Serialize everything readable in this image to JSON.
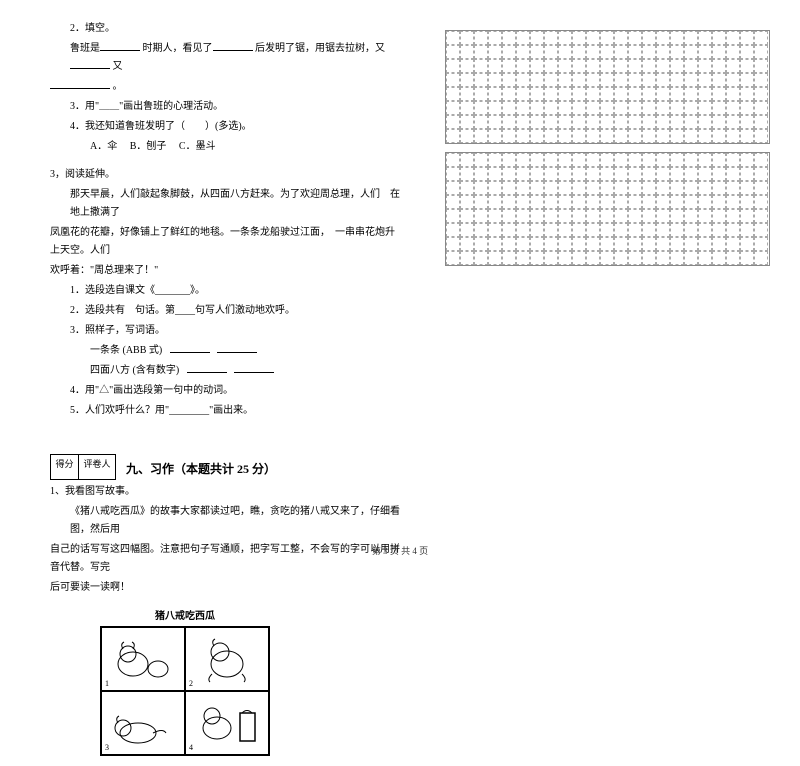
{
  "left": {
    "q2": "2．填空。",
    "q2_text_a": "鲁班是",
    "q2_text_b": "时期人，看见了",
    "q2_text_c": "后发明了锯，用锯去拉树，又",
    "q2_text_d": "又",
    "q2_line2": "。",
    "q3": "3．用\"＿＿\"画出鲁班的心理活动。",
    "q4": "4．我还知道鲁班发明了（　　）(多选)。",
    "q4a": "A．伞",
    "q4b": "B．刨子",
    "q4c": "C．墨斗",
    "section3": "3，阅读延伸。",
    "para1": "那天早晨，人们敲起象脚鼓，从四面八方赶来。为了欢迎周总理，人们　在地上撒满了",
    "para2": "凤凰花的花瓣，好像铺上了鲜红的地毯。一条条龙船驶过江面，　一串串花炮升上天空。人们",
    "para3": "欢呼着：\"周总理来了！\"",
    "sq1": "1．选段选自课文《_______》。",
    "sq2": "2．选段共有　句话。第____句写人们激动地欢呼。",
    "sq3": "3．照样子，写词语。",
    "sq3a": "一条条 (ABB 式)",
    "sq3b": "四面八方 (含有数字)",
    "sq4": "4．用\"△\"画出选段第一句中的动词。",
    "sq5": "5．人们欢呼什么？用\"________\"画出来。",
    "score_label1": "得分",
    "score_label2": "评卷人",
    "section9": "九、习作（本题共计 25 分）",
    "w1": "1、我看图写故事。",
    "w2": "《猪八戒吃西瓜》的故事大家都读过吧，瞧，贪吃的猪八戒又来了，仔细看图，然后用",
    "w3": "自己的话写写这四幅图。注意把句子写通顺，把字写工整，不会写的字可以用拼音代替。写完",
    "w4": "后可要读一读啊！",
    "illus_title": "猪八戒吃西瓜"
  },
  "grids": {
    "rows": 8,
    "cols": 23,
    "count": 2
  },
  "footer": "第 3 页 共 4 页",
  "colors": {
    "text": "#000000",
    "bg": "#ffffff",
    "grid_border": "#888888",
    "grid_dash": "#aaaaaa"
  }
}
